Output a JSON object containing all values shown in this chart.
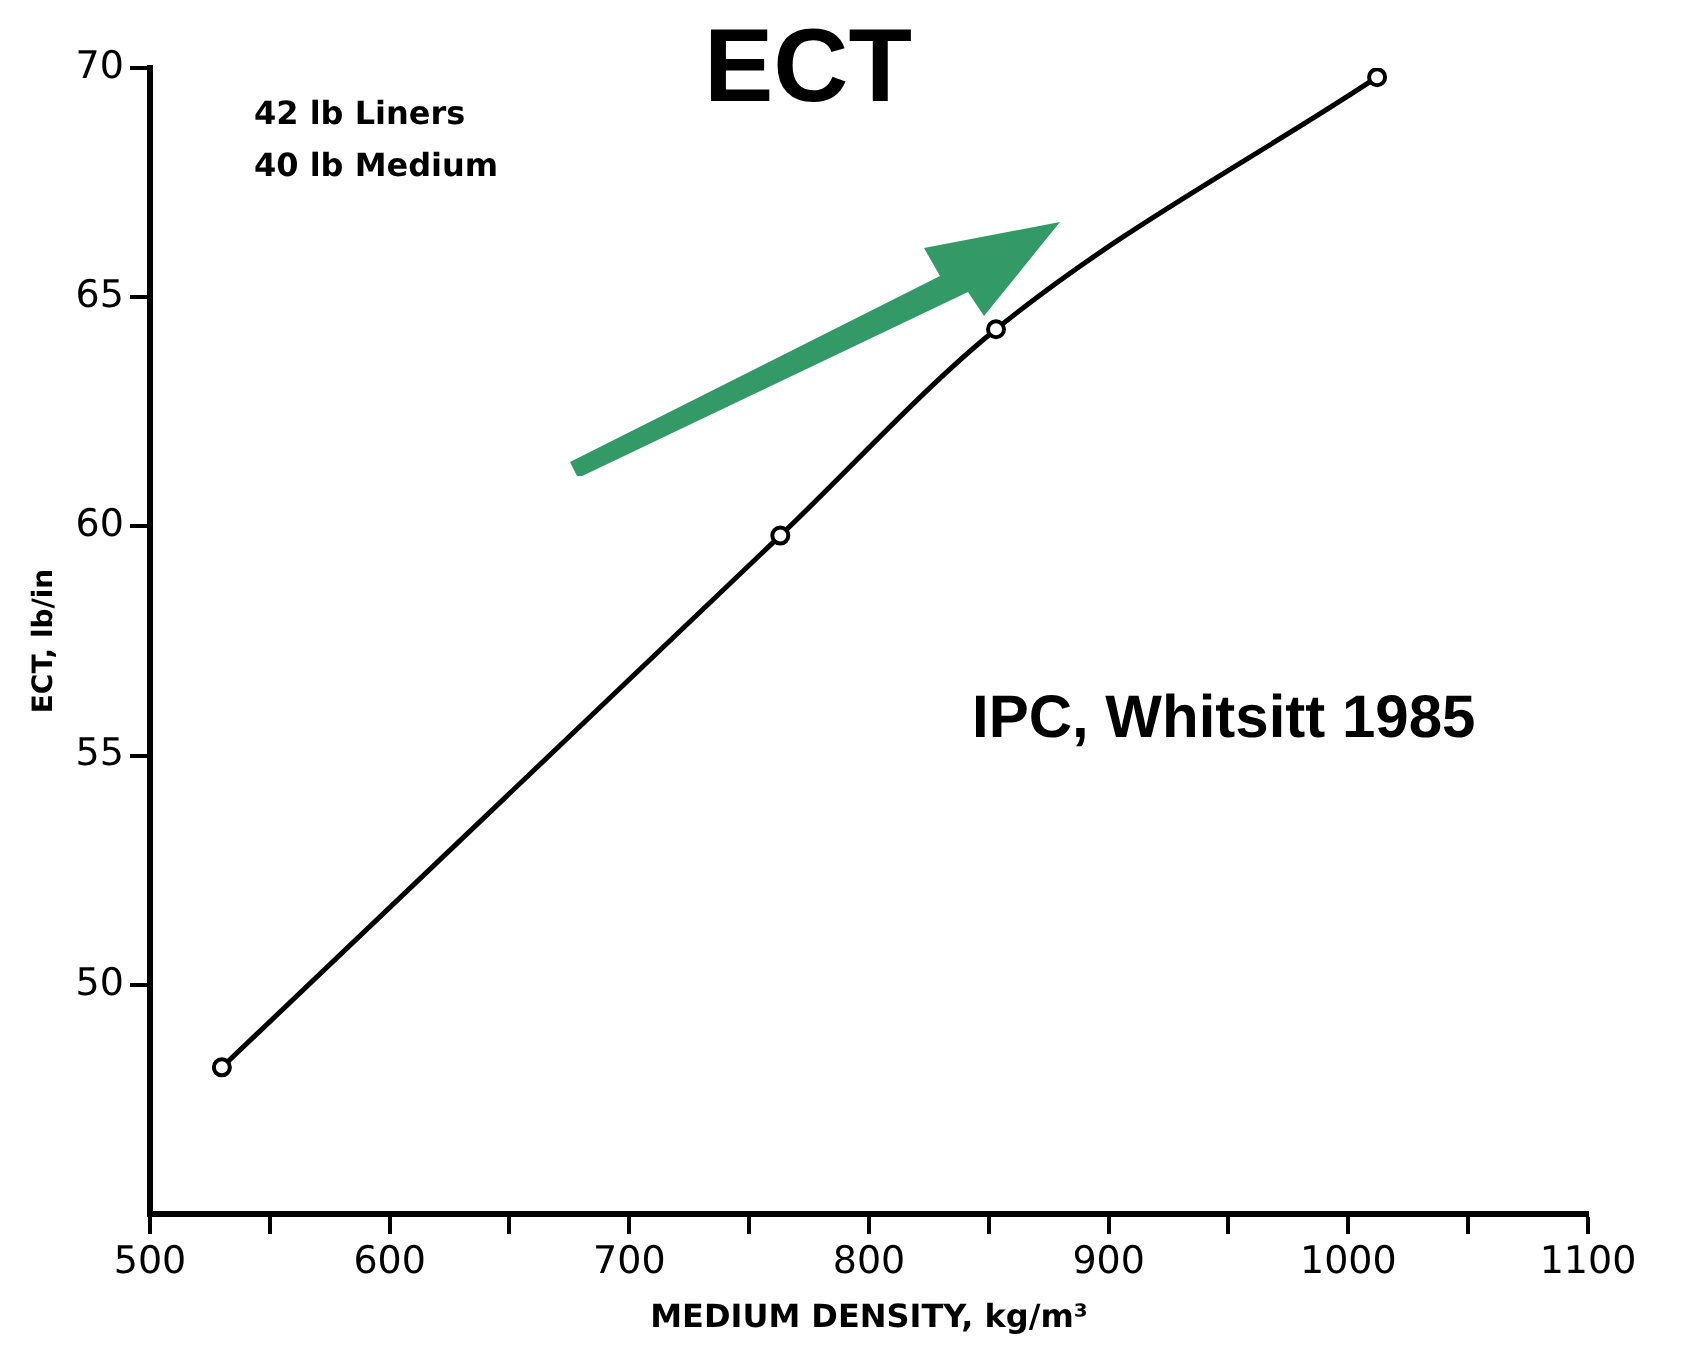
{
  "chart_data": {
    "type": "line",
    "title": "ECT",
    "xlabel": "MEDIUM DENSITY, kg/m³",
    "ylabel": "ECT, lb/in",
    "x": [
      530,
      763,
      853,
      1012
    ],
    "series": [
      {
        "color": "#000000",
        "values": [
          48.2,
          59.8,
          64.3,
          69.8
        ]
      }
    ],
    "xlim": [
      500,
      1100
    ],
    "xticks": [
      500,
      {
        "value": 550,
        "label": null
      },
      600,
      {
        "value": 650,
        "label": null
      },
      700,
      {
        "value": 750,
        "label": null
      },
      800,
      {
        "value": 850,
        "label": null
      },
      900,
      {
        "value": 950,
        "label": null
      },
      1000,
      {
        "value": 1050,
        "label": null
      },
      1100
    ],
    "ylim": [
      45,
      70
    ],
    "yticks": [
      50,
      55,
      60,
      65,
      70
    ],
    "grid": false,
    "legend": false,
    "marker": "circle",
    "line_style": "solid",
    "annotations": [
      "42 lb Liners",
      "40 lb Medium",
      "IPC, Whitsitt 1985"
    ]
  }
}
